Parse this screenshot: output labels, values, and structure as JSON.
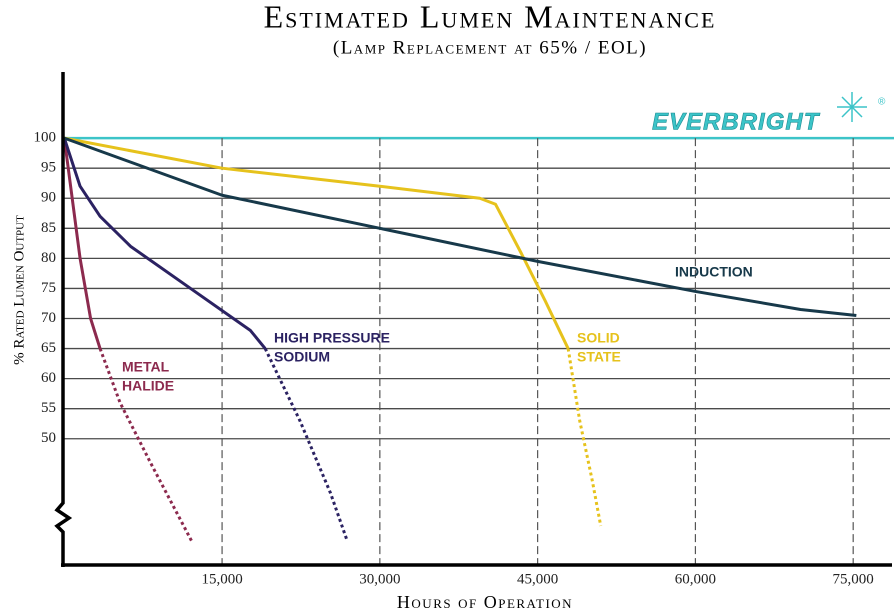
{
  "chart_data": {
    "type": "line",
    "title": "Estimated Lumen Maintenance",
    "subtitle": "(Lamp Replacement at 65% / EOL)",
    "x_label": "Hours of Operation",
    "y_label": "% Rated Lumen Output",
    "brand": "EVERBRIGHT",
    "brand_mark": "®",
    "threshold": 65,
    "threshold_color": "#b03a3a",
    "reference_color": "#3cc4c8",
    "xlim": [
      0,
      78500
    ],
    "ylim": [
      29,
      111
    ],
    "xticks": [
      {
        "value": 15000,
        "label": "15,000"
      },
      {
        "value": 30000,
        "label": "30,000"
      },
      {
        "value": 45000,
        "label": "45,000"
      },
      {
        "value": 60000,
        "label": "60,000"
      },
      {
        "value": 75000,
        "label": "75,000"
      }
    ],
    "yticks": [
      50,
      55,
      60,
      65,
      70,
      75,
      80,
      85,
      90,
      95,
      100
    ],
    "grid": true,
    "series": [
      {
        "labels": [
          "METAL",
          "HALIDE"
        ],
        "color": "#8c2a4e",
        "x": [
          0,
          600,
          1500,
          2500,
          3400,
          5300,
          8200,
          12100
        ],
        "values": [
          100,
          92,
          80,
          70,
          65,
          56,
          46,
          33
        ]
      },
      {
        "labels": [
          "HIGH PRESSURE",
          "SODIUM"
        ],
        "color": "#2b2262",
        "x": [
          0,
          1500,
          3400,
          6300,
          12000,
          17700,
          19100,
          22400,
          25300,
          26900
        ],
        "values": [
          100,
          92,
          87,
          82,
          75,
          68,
          65,
          53,
          41,
          33
        ]
      },
      {
        "labels": [
          "SOLID",
          "STATE"
        ],
        "color": "#e6c21c",
        "x": [
          0,
          15000,
          30000,
          39500,
          41000,
          43400,
          45700,
          47900,
          49000,
          50200,
          51000
        ],
        "values": [
          100,
          95,
          92,
          90,
          89,
          81,
          73,
          65,
          53,
          43,
          35.5
        ]
      },
      {
        "labels": [
          "INDUCTION"
        ],
        "color": "#17394a",
        "x": [
          0,
          15000,
          30000,
          45000,
          60000,
          70000,
          75300
        ],
        "values": [
          100,
          90.5,
          85,
          79.5,
          74.5,
          71.5,
          70.5
        ]
      }
    ]
  }
}
